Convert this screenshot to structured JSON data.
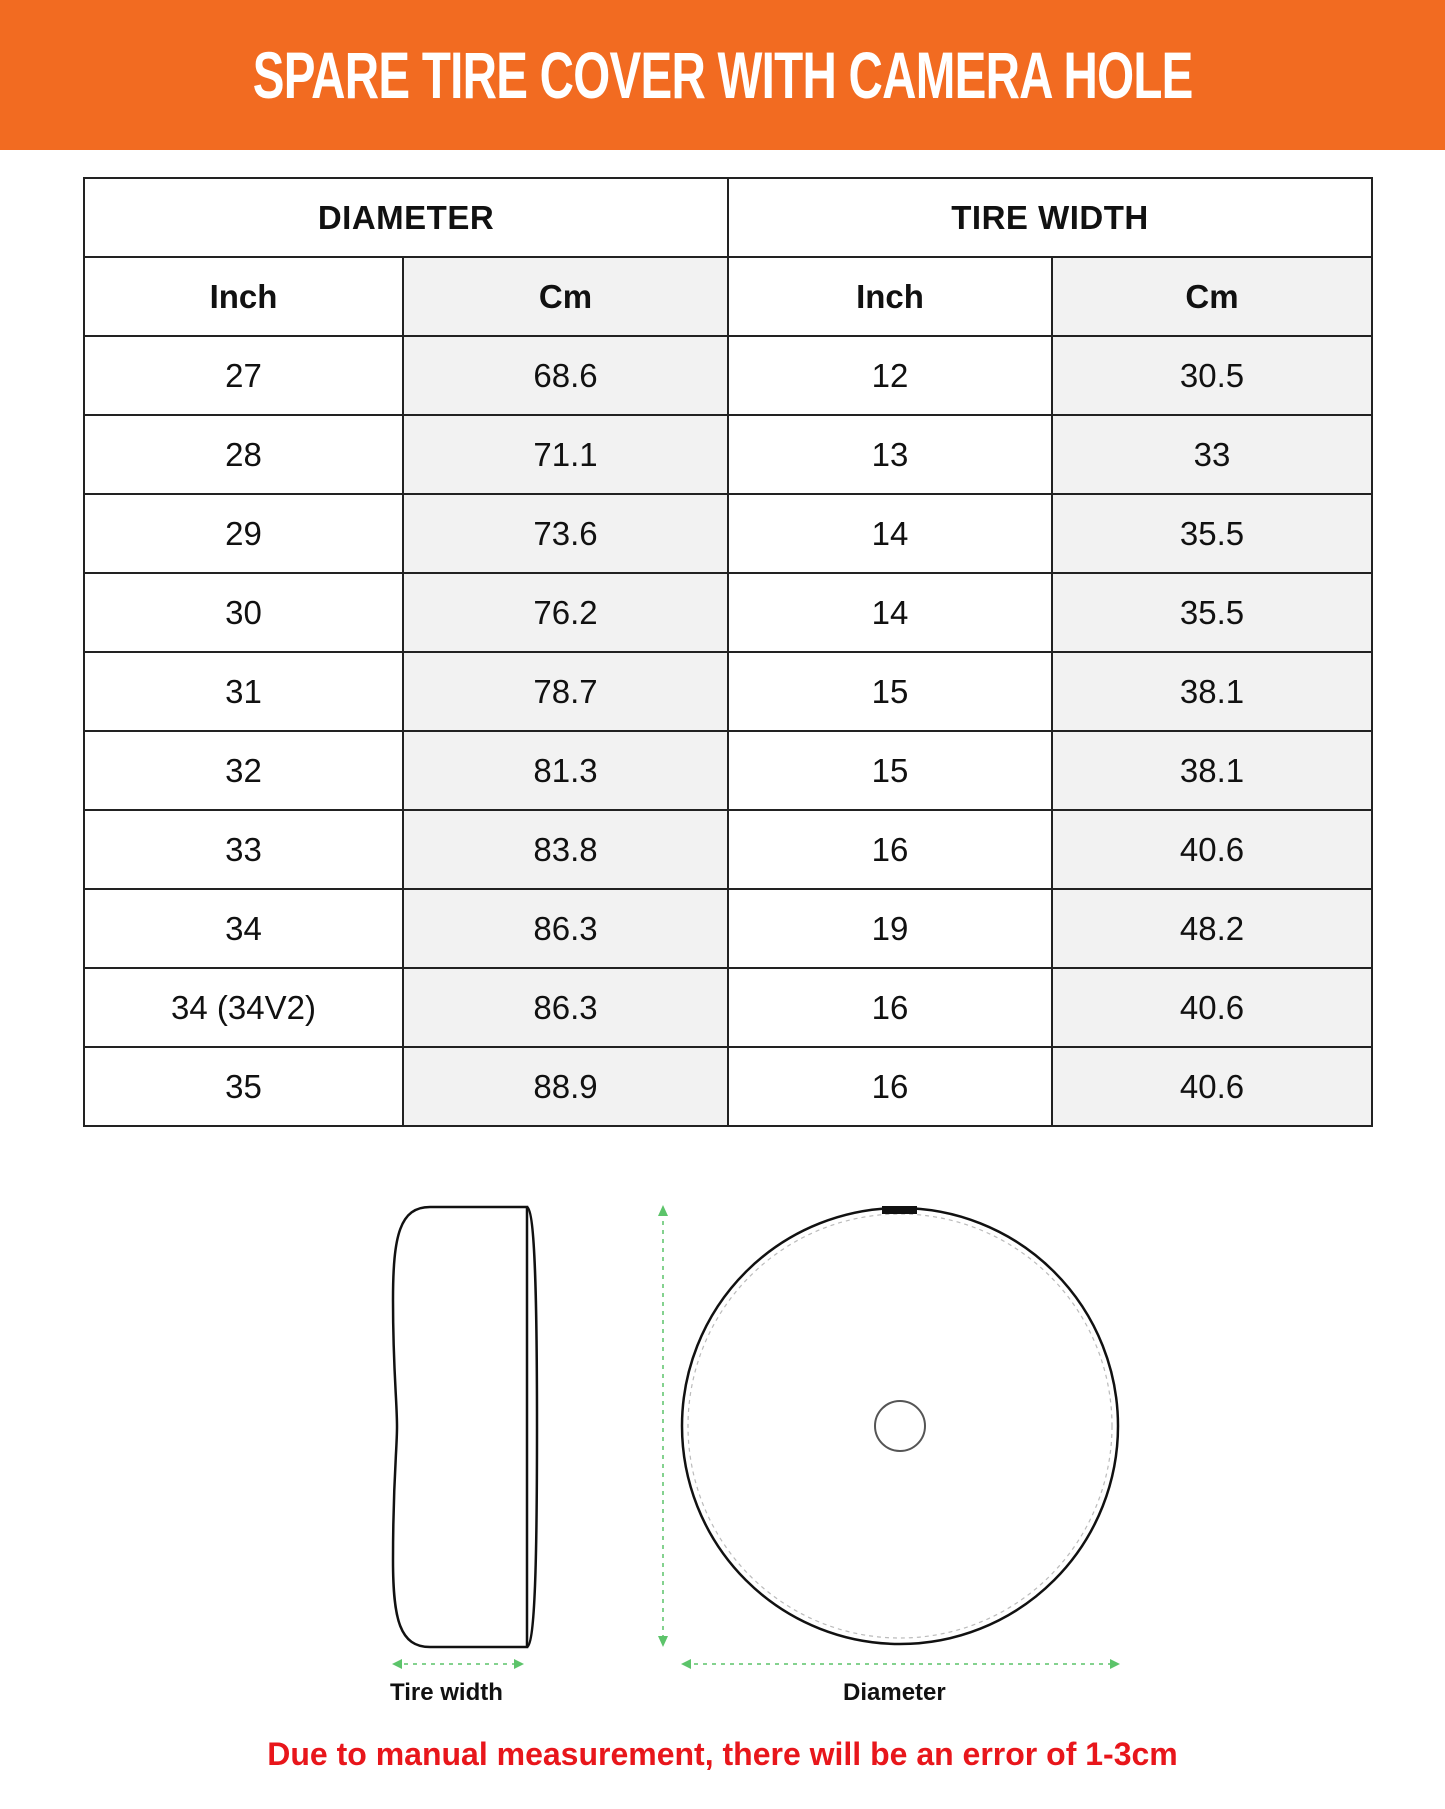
{
  "title": "SPARE TIRE COVER WITH CAMERA HOLE",
  "table": {
    "groups": [
      "DIAMETER",
      "TIRE WIDTH"
    ],
    "columns": [
      "Inch",
      "Cm",
      "Inch",
      "Cm"
    ],
    "rows": [
      [
        "27",
        "68.6",
        "12",
        "30.5"
      ],
      [
        "28",
        "71.1",
        "13",
        "33"
      ],
      [
        "29",
        "73.6",
        "14",
        "35.5"
      ],
      [
        "30",
        "76.2",
        "14",
        "35.5"
      ],
      [
        "31",
        "78.7",
        "15",
        "38.1"
      ],
      [
        "32",
        "81.3",
        "15",
        "38.1"
      ],
      [
        "33",
        "83.8",
        "16",
        "40.6"
      ],
      [
        "34",
        "86.3",
        "19",
        "48.2"
      ],
      [
        "34 (34V2)",
        "86.3",
        "16",
        "40.6"
      ],
      [
        "35",
        "88.9",
        "16",
        "40.6"
      ]
    ]
  },
  "diagram": {
    "tire_width_label": "Tire width",
    "diameter_label": "Diameter",
    "arrow_color": "#5cc46a"
  },
  "note": "Due to manual measurement, there will be an error of 1-3cm",
  "colors": {
    "banner": "#f26b21",
    "note": "#e8161b"
  }
}
